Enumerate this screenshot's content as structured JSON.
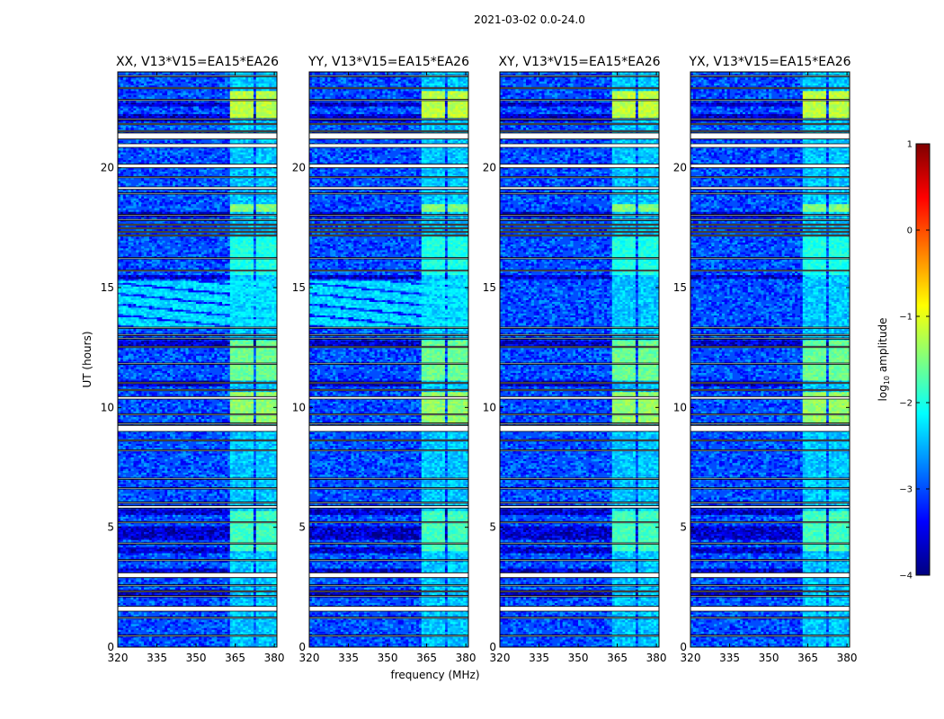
{
  "figure": {
    "suptitle": "2021-03-02 0.0-24.0",
    "ylabel": "UT (hours)",
    "xlabel": "frequency (MHz)"
  },
  "colorbar": {
    "label_prefix": "log",
    "label_sub": "10",
    "label_suffix": " amplitude",
    "range": [
      -4,
      1
    ],
    "ticks": [
      1,
      0,
      -1,
      -2,
      -3,
      -4
    ],
    "tick_labels": [
      "1",
      "0",
      "−1",
      "−2",
      "−3",
      "−4"
    ],
    "colormap": "jet",
    "colors": [
      "#00007f",
      "#0000ff",
      "#007fff",
      "#00ffff",
      "#7fff7f",
      "#ffff00",
      "#ff7f00",
      "#ff0000",
      "#7f0000"
    ]
  },
  "chart_data": {
    "type": "heatmap",
    "xlim": [
      320,
      381
    ],
    "ylim": [
      0,
      24
    ],
    "xticks": [
      320,
      335,
      350,
      365,
      380
    ],
    "xtick_labels": [
      "320",
      "335",
      "350",
      "365",
      "380"
    ],
    "yticks": [
      0,
      5,
      10,
      15,
      20
    ],
    "ytick_labels": [
      "0",
      "5",
      "10",
      "15",
      "20"
    ],
    "panels": [
      {
        "title": "XX, V13*V15=EA15*EA26",
        "pol": "XX",
        "chirp": true
      },
      {
        "title": "YY, V13*V15=EA15*EA26",
        "pol": "YY",
        "chirp": true
      },
      {
        "title": "XY, V13*V15=EA15*EA26",
        "pol": "XY",
        "chirp": false
      },
      {
        "title": "YX, V13*V15=EA15*EA26",
        "pol": "YX",
        "chirp": false
      }
    ],
    "background_log_amp": -3.0,
    "rfi_freq_bands_mhz": [
      [
        363.5,
        367.5
      ],
      [
        368.5,
        372.0
      ],
      [
        373.0,
        376.5
      ],
      [
        377.5,
        381.0
      ]
    ],
    "rfi_time_blocks_ut": [
      {
        "t0": 22.1,
        "t1": 23.2,
        "log_amp": -1.2
      },
      {
        "t0": 18.2,
        "t1": 18.5,
        "log_amp": -1.5
      },
      {
        "t0": 15.5,
        "t1": 17.1,
        "log_amp": -2.0
      },
      {
        "t0": 11.1,
        "t1": 12.8,
        "log_amp": -1.6
      },
      {
        "t0": 9.3,
        "t1": 10.6,
        "log_amp": -1.4
      },
      {
        "t0": 4.0,
        "t1": 5.7,
        "log_amp": -1.8
      }
    ],
    "chirp_interval_ut": [
      13.3,
      15.3
    ],
    "flagged_gaps_ut": [
      [
        23.8,
        23.85
      ],
      [
        23.3,
        23.35
      ],
      [
        22.8,
        22.85
      ],
      [
        22.0,
        22.05
      ],
      [
        21.8,
        21.85
      ],
      [
        21.5,
        21.55
      ],
      [
        21.2,
        21.45
      ],
      [
        20.85,
        21.0
      ],
      [
        20.0,
        20.15
      ],
      [
        19.6,
        19.63
      ],
      [
        19.1,
        19.2
      ],
      [
        18.9,
        18.95
      ],
      [
        18.0,
        18.05
      ],
      [
        17.8,
        17.85
      ],
      [
        17.6,
        17.65
      ],
      [
        17.45,
        17.5
      ],
      [
        17.3,
        17.35
      ],
      [
        17.15,
        17.2
      ],
      [
        16.2,
        16.25
      ],
      [
        15.7,
        15.73
      ],
      [
        13.3,
        13.35
      ],
      [
        13.0,
        13.05
      ],
      [
        12.85,
        12.9
      ],
      [
        12.5,
        12.55
      ],
      [
        11.8,
        11.85
      ],
      [
        11.0,
        11.05
      ],
      [
        10.7,
        10.75
      ],
      [
        10.35,
        10.45
      ],
      [
        9.7,
        9.73
      ],
      [
        9.3,
        9.35
      ],
      [
        9.0,
        9.25
      ],
      [
        8.6,
        8.65
      ],
      [
        8.2,
        8.23
      ],
      [
        7.0,
        7.05
      ],
      [
        6.6,
        6.65
      ],
      [
        6.0,
        6.05
      ],
      [
        5.8,
        5.9
      ],
      [
        5.2,
        5.23
      ],
      [
        4.3,
        4.35
      ],
      [
        3.6,
        3.65
      ],
      [
        2.9,
        3.1
      ],
      [
        2.55,
        2.6
      ],
      [
        2.3,
        2.35
      ],
      [
        2.1,
        2.15
      ],
      [
        1.5,
        1.7
      ],
      [
        1.2,
        1.25
      ],
      [
        0.45,
        0.5
      ]
    ],
    "dark_bands_ut": [
      [
        22.6,
        22.75
      ],
      [
        21.95,
        22.2
      ],
      [
        17.9,
        18.15
      ],
      [
        15.35,
        15.5
      ],
      [
        12.6,
        12.8
      ],
      [
        10.9,
        11.1
      ],
      [
        5.5,
        5.8
      ],
      [
        4.5,
        5.0
      ],
      [
        3.9,
        4.2
      ],
      [
        3.1,
        3.3
      ],
      [
        2.1,
        2.4
      ]
    ]
  }
}
